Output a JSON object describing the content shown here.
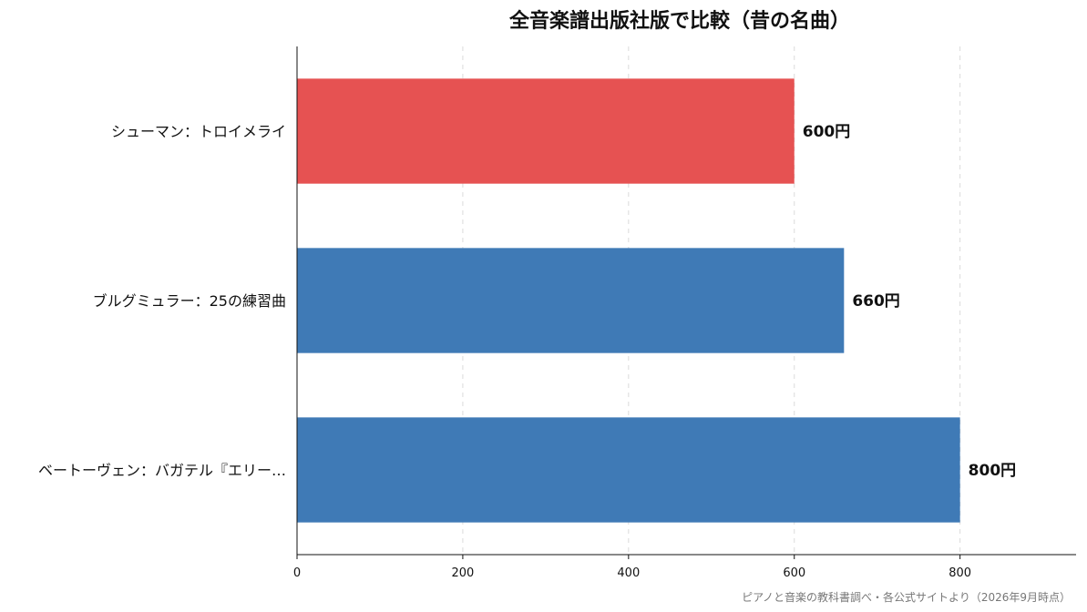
{
  "chart_data": {
    "type": "bar",
    "orientation": "horizontal",
    "title": "全音楽譜出版社版で比較（昔の名曲）",
    "categories": [
      "シューマン：トロイメライ",
      "ブルグミュラー：25の練習曲",
      "ベートーヴェン：バガテル『エリー…"
    ],
    "values": [
      600,
      660,
      800
    ],
    "value_labels": [
      "600円",
      "660円",
      "800円"
    ],
    "bar_colors": [
      "#e65252",
      "#3f7ab6",
      "#3f7ab6"
    ],
    "xlim": [
      0,
      940
    ],
    "xticks": [
      0,
      200,
      400,
      600,
      800
    ],
    "xlabel": "",
    "ylabel": "",
    "grid": "x-axis dashed",
    "legend": "none"
  },
  "source_note": "ピアノと音楽の教科書調べ・各公式サイトより（2026年9月時点）"
}
